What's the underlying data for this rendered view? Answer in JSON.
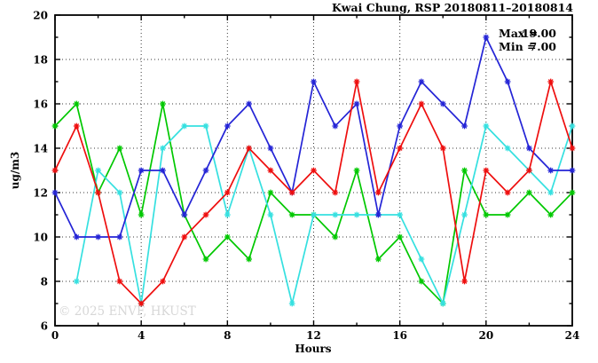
{
  "title": "Kwai Chung, RSP 20180811–20180814",
  "annotation": {
    "max_label": "Max =",
    "max_value": "19.00",
    "min_label": "Min =",
    "min_value": "7.00"
  },
  "watermark": "© 2025 ENVF, HKUST",
  "chart_data": {
    "type": "line",
    "title": "Kwai Chung, RSP 20180811–20180814",
    "xlabel": "Hours",
    "ylabel": "ug/m3",
    "xlim": [
      0,
      24
    ],
    "ylim": [
      6,
      20
    ],
    "grid": true,
    "legend_position": "none",
    "x_major_ticks": [
      0,
      4,
      8,
      12,
      16,
      20,
      24
    ],
    "x_minor_ticks": [
      2,
      6,
      10,
      14,
      18,
      22
    ],
    "y_major_ticks": [
      6,
      8,
      10,
      12,
      14,
      16,
      18,
      20
    ],
    "y_minor_ticks": [
      7,
      9,
      11,
      13,
      15,
      17,
      19
    ],
    "x": [
      0,
      1,
      2,
      3,
      4,
      5,
      6,
      7,
      8,
      9,
      10,
      11,
      12,
      13,
      14,
      15,
      16,
      17,
      18,
      19,
      20,
      21,
      22,
      23,
      24
    ],
    "series": [
      {
        "name": "green",
        "color": "#00c800",
        "values": [
          15,
          16,
          12,
          14,
          11,
          16,
          11,
          9,
          10,
          9,
          12,
          11,
          11,
          10,
          13,
          9,
          10,
          8,
          7,
          13,
          11,
          11,
          12,
          11,
          12
        ]
      },
      {
        "name": "cyan",
        "color": "#35e0e0",
        "values": [
          null,
          8,
          13,
          12,
          7,
          14,
          15,
          15,
          11,
          14,
          11,
          7,
          11,
          11,
          11,
          11,
          11,
          9,
          7,
          11,
          15,
          14,
          13,
          12,
          15
        ]
      },
      {
        "name": "blue",
        "color": "#2424d6",
        "values": [
          12,
          10,
          10,
          10,
          13,
          13,
          11,
          13,
          15,
          16,
          14,
          12,
          17,
          15,
          16,
          11,
          15,
          17,
          16,
          15,
          19,
          17,
          14,
          13,
          13
        ]
      },
      {
        "name": "red",
        "color": "#ee0e0e",
        "values": [
          13,
          15,
          12,
          8,
          7,
          8,
          10,
          11,
          12,
          14,
          13,
          12,
          13,
          12,
          17,
          12,
          14,
          16,
          14,
          8,
          13,
          12,
          13,
          17,
          14
        ]
      }
    ],
    "stats": {
      "max": 19.0,
      "min": 7.0
    }
  }
}
